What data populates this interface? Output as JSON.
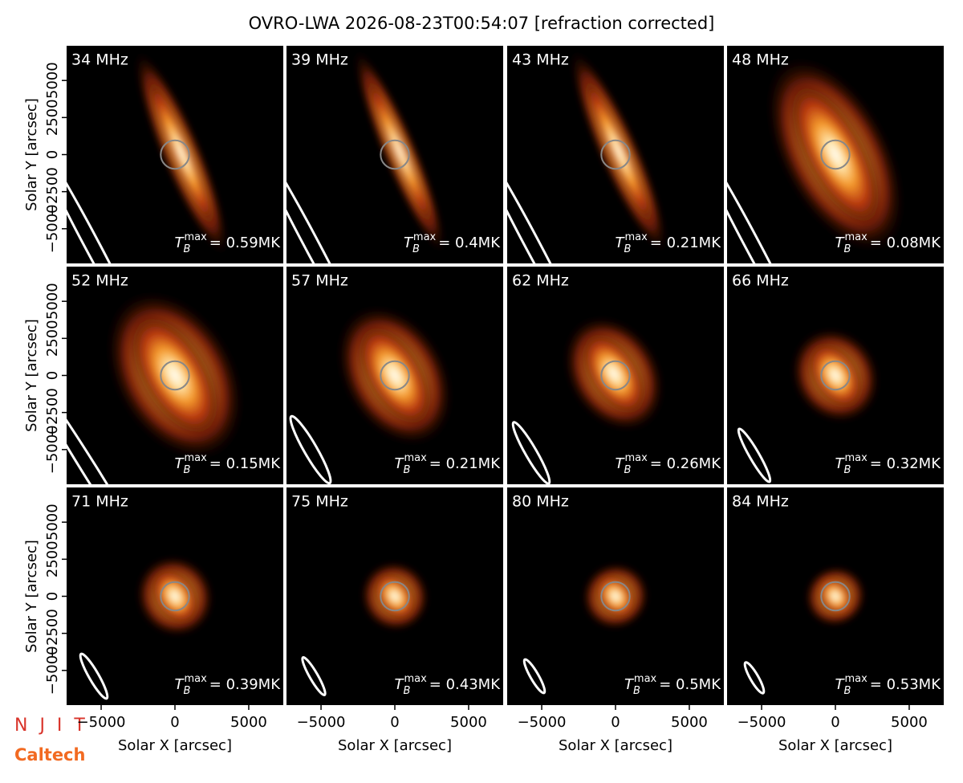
{
  "chart_data": {
    "type": "image_grid",
    "title": "OVRO-LWA 2026-08-23T00:54:07 [refraction corrected]",
    "xlabel": "Solar X [arcsec]",
    "ylabel": "Solar Y [arcsec]",
    "xlim": [
      -7340,
      7340
    ],
    "ylim": [
      -7340,
      7340
    ],
    "xticks": [
      {
        "value": -5000,
        "label": "−5000"
      },
      0,
      5000
    ],
    "yticks": [
      {
        "value": -5000,
        "label": "−5000"
      },
      {
        "value": -2500,
        "label": "−2500"
      },
      0,
      2500,
      5000
    ],
    "tmax_symbol": {
      "base": "T",
      "sub": "B",
      "sup": "max"
    },
    "panels": [
      {
        "label": "34 MHz",
        "tmax": "= 0.59MK"
      },
      {
        "label": "39 MHz",
        "tmax": "= 0.4MK"
      },
      {
        "label": "43 MHz",
        "tmax": "= 0.21MK"
      },
      {
        "label": "48 MHz",
        "tmax": "= 0.08MK"
      },
      {
        "label": "52 MHz",
        "tmax": "= 0.15MK"
      },
      {
        "label": "57 MHz",
        "tmax": "= 0.21MK"
      },
      {
        "label": "62 MHz",
        "tmax": "= 0.26MK"
      },
      {
        "label": "66 MHz",
        "tmax": "= 0.32MK"
      },
      {
        "label": "71 MHz",
        "tmax": "= 0.39MK"
      },
      {
        "label": "75 MHz",
        "tmax": "= 0.43MK"
      },
      {
        "label": "80 MHz",
        "tmax": "= 0.5MK"
      },
      {
        "label": "84 MHz",
        "tmax": "= 0.53MK"
      }
    ]
  },
  "logos": [
    "N J I T",
    "Caltech"
  ]
}
